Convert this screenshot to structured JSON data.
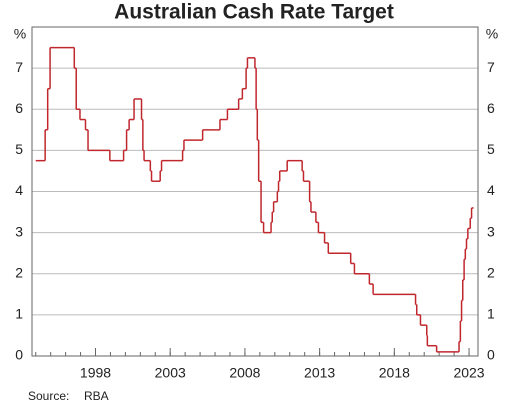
{
  "chart_data": {
    "type": "step-line",
    "title": "Australian Cash Rate Target",
    "y_unit": "%",
    "source_label": "Source:",
    "source": "RBA",
    "x": [
      1994.0,
      1994.63,
      1994.8,
      1994.96,
      1996.58,
      1996.71,
      1996.96,
      1997.33,
      1997.5,
      1998.96,
      1999.88,
      2000.08,
      2000.25,
      2000.58,
      2001.08,
      2001.17,
      2001.25,
      2001.67,
      2001.75,
      2001.92,
      2002.33,
      2002.42,
      2003.83,
      2003.92,
      2005.17,
      2006.33,
      2006.83,
      2007.58,
      2007.83,
      2008.08,
      2008.17,
      2008.67,
      2008.75,
      2008.83,
      2008.92,
      2009.08,
      2009.25,
      2009.75,
      2009.83,
      2009.92,
      2010.17,
      2010.25,
      2010.33,
      2010.83,
      2011.83,
      2011.92,
      2012.33,
      2012.42,
      2012.75,
      2012.92,
      2013.33,
      2013.58,
      2015.08,
      2015.33,
      2016.33,
      2016.58,
      2019.42,
      2019.5,
      2019.75,
      2020.17,
      2020.21,
      2020.83,
      2022.33,
      2022.42,
      2022.5,
      2022.58,
      2022.67,
      2022.75,
      2022.83,
      2022.92,
      2023.08,
      2023.17
    ],
    "series": [
      {
        "color": "#c0272d",
        "values": [
          4.75,
          5.5,
          6.5,
          7.5,
          7.0,
          6.0,
          5.75,
          5.5,
          5.0,
          4.75,
          5.0,
          5.5,
          5.75,
          6.25,
          5.75,
          5.0,
          4.75,
          4.5,
          4.25,
          4.25,
          4.5,
          4.75,
          5.0,
          5.25,
          5.5,
          5.75,
          6.0,
          6.25,
          6.5,
          7.0,
          7.25,
          7.0,
          6.0,
          5.25,
          4.25,
          3.25,
          3.0,
          3.25,
          3.5,
          3.75,
          4.0,
          4.25,
          4.5,
          4.75,
          4.5,
          4.25,
          3.75,
          3.5,
          3.25,
          3.0,
          2.75,
          2.5,
          2.25,
          2.0,
          1.75,
          1.5,
          1.25,
          1.0,
          0.75,
          0.5,
          0.25,
          0.1,
          0.35,
          0.85,
          1.35,
          1.85,
          2.35,
          2.6,
          2.85,
          3.1,
          3.35,
          3.6
        ]
      }
    ],
    "xlim": [
      1993.75,
      2023.6
    ],
    "xticks": [
      1998,
      2003,
      2008,
      2013,
      2018,
      2023
    ],
    "ylim": [
      0,
      8
    ],
    "yticks": [
      0,
      1,
      2,
      3,
      4,
      5,
      6,
      7
    ],
    "grid": true
  }
}
